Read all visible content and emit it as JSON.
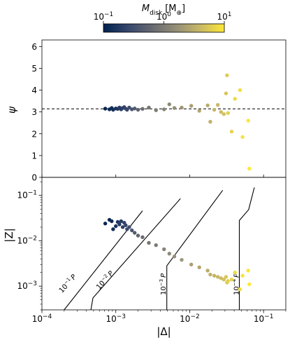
{
  "colorbar": {
    "label": "M_disk [M_⊕]",
    "label_main": "M",
    "label_sub": "disk",
    "label_unit": "[M",
    "label_unit_sub": "⊕",
    "label_close": "]",
    "range": [
      0.1,
      10
    ],
    "scale": "log",
    "ticks": [
      {
        "value": 0.1,
        "base": "10",
        "exp": "−1"
      },
      {
        "value": 1,
        "base": "10",
        "exp": "0"
      },
      {
        "value": 10,
        "base": "10",
        "exp": "1"
      }
    ],
    "colormap": "cividis",
    "colors": [
      "#00224e",
      "#35456c",
      "#666970",
      "#948e77",
      "#c8b866",
      "#fee838"
    ]
  },
  "chart_data": [
    {
      "type": "scatter",
      "panel": "top",
      "ylabel": "ψ",
      "ylim": [
        0,
        6.3
      ],
      "yticks": [
        {
          "value": 0,
          "label": "0"
        },
        {
          "value": 1,
          "label": "1"
        },
        {
          "value": 2,
          "label": "2"
        },
        {
          "value": 3,
          "label": "3"
        },
        {
          "value": 4,
          "label": "4"
        },
        {
          "value": 5,
          "label": "5"
        },
        {
          "value": 6,
          "label": "6"
        }
      ],
      "xscale": "log",
      "xlim": [
        0.0001,
        0.2
      ],
      "reference_line": {
        "y": 3.14159,
        "style": "dashed"
      },
      "points": [
        {
          "x": 0.00072,
          "y": 3.15,
          "m": 0.11
        },
        {
          "x": 0.00082,
          "y": 3.12,
          "m": 0.12
        },
        {
          "x": 0.00088,
          "y": 3.18,
          "m": 0.13
        },
        {
          "x": 0.00092,
          "y": 3.1,
          "m": 0.14
        },
        {
          "x": 0.001,
          "y": 3.16,
          "m": 0.15
        },
        {
          "x": 0.00106,
          "y": 3.14,
          "m": 0.17
        },
        {
          "x": 0.00112,
          "y": 3.2,
          "m": 0.19
        },
        {
          "x": 0.00118,
          "y": 3.12,
          "m": 0.2
        },
        {
          "x": 0.00124,
          "y": 3.18,
          "m": 0.22
        },
        {
          "x": 0.0013,
          "y": 3.22,
          "m": 0.24
        },
        {
          "x": 0.00136,
          "y": 3.15,
          "m": 0.26
        },
        {
          "x": 0.00142,
          "y": 3.1,
          "m": 0.28
        },
        {
          "x": 0.00152,
          "y": 3.2,
          "m": 0.32
        },
        {
          "x": 0.00165,
          "y": 3.12,
          "m": 0.38
        },
        {
          "x": 0.0018,
          "y": 3.16,
          "m": 0.45
        },
        {
          "x": 0.002,
          "y": 3.1,
          "m": 0.55
        },
        {
          "x": 0.0023,
          "y": 3.14,
          "m": 0.7
        },
        {
          "x": 0.0028,
          "y": 3.2,
          "m": 0.85
        },
        {
          "x": 0.0035,
          "y": 3.08,
          "m": 1.0
        },
        {
          "x": 0.0045,
          "y": 3.12,
          "m": 1.2
        },
        {
          "x": 0.0053,
          "y": 3.35,
          "m": 1.4
        },
        {
          "x": 0.0062,
          "y": 3.18,
          "m": 1.6
        },
        {
          "x": 0.0078,
          "y": 3.2,
          "m": 1.9
        },
        {
          "x": 0.0105,
          "y": 3.28,
          "m": 2.3
        },
        {
          "x": 0.0135,
          "y": 3.05,
          "m": 2.7
        },
        {
          "x": 0.0175,
          "y": 3.3,
          "m": 3.1
        },
        {
          "x": 0.019,
          "y": 2.55,
          "m": 3.4
        },
        {
          "x": 0.0215,
          "y": 3.1,
          "m": 3.7
        },
        {
          "x": 0.024,
          "y": 3.32,
          "m": 4.0
        },
        {
          "x": 0.0265,
          "y": 3.0,
          "m": 4.3
        },
        {
          "x": 0.029,
          "y": 2.9,
          "m": 4.7
        },
        {
          "x": 0.031,
          "y": 3.85,
          "m": 5.2
        },
        {
          "x": 0.032,
          "y": 4.68,
          "m": 5.8
        },
        {
          "x": 0.033,
          "y": 2.95,
          "m": 6.2
        },
        {
          "x": 0.037,
          "y": 2.1,
          "m": 6.8
        },
        {
          "x": 0.041,
          "y": 3.6,
          "m": 7.5
        },
        {
          "x": 0.048,
          "y": 4.0,
          "m": 8.3
        },
        {
          "x": 0.052,
          "y": 1.85,
          "m": 9.0
        },
        {
          "x": 0.062,
          "y": 2.6,
          "m": 9.5
        },
        {
          "x": 0.064,
          "y": 0.4,
          "m": 10.0
        }
      ]
    },
    {
      "type": "scatter",
      "panel": "bottom",
      "xlabel": "|Δ|",
      "ylabel": "|Z|",
      "xscale": "log",
      "yscale": "log",
      "xlim": [
        0.0001,
        0.2
      ],
      "ylim": [
        0.0003,
        0.25
      ],
      "xticks": [
        {
          "value": 0.0001,
          "base": "10",
          "exp": "−4"
        },
        {
          "value": 0.001,
          "base": "10",
          "exp": "−3"
        },
        {
          "value": 0.01,
          "base": "10",
          "exp": "−2"
        },
        {
          "value": 0.1,
          "base": "10",
          "exp": "−1"
        }
      ],
      "yticks": [
        {
          "value": 0.001,
          "base": "10",
          "exp": "−3"
        },
        {
          "value": 0.01,
          "base": "10",
          "exp": "−2"
        },
        {
          "value": 0.1,
          "base": "10",
          "exp": "−1"
        }
      ],
      "reference_lines": [
        {
          "label_base": "10",
          "label_exp": "−1",
          "label_p": "P",
          "points": [
            [
              0.0002,
              0.0003
            ],
            [
              0.0023,
              0.046
            ]
          ]
        },
        {
          "label_base": "10",
          "label_exp": "−2",
          "label_p": "P",
          "points": [
            [
              0.00046,
              0.0003
            ],
            [
              0.00049,
              0.00055
            ],
            [
              0.0075,
              0.085
            ]
          ]
        },
        {
          "label_base": "10",
          "label_exp": "−3",
          "label_p": "P",
          "points": [
            [
              0.0049,
              0.0003
            ],
            [
              0.0049,
              0.0028
            ],
            [
              0.028,
              0.13
            ]
          ]
        },
        {
          "label_base": "10",
          "label_exp": "−4",
          "label_p": "P",
          "points": [
            [
              0.047,
              0.0003
            ],
            [
              0.047,
              0.028
            ],
            [
              0.063,
              0.049
            ],
            [
              0.063,
              0.05
            ],
            [
              0.075,
              0.15
            ]
          ]
        }
      ],
      "line_labels_at": [
        {
          "x": 0.000235,
          "y": 0.00105
        },
        {
          "x": 0.00075,
          "y": 0.00125
        },
        {
          "x": 0.0047,
          "y": 0.0011
        },
        {
          "x": 0.046,
          "y": 0.0011
        }
      ],
      "points": [
        {
          "x": 0.00072,
          "y": 0.024,
          "m": 0.11
        },
        {
          "x": 0.00082,
          "y": 0.029,
          "m": 0.12
        },
        {
          "x": 0.00088,
          "y": 0.027,
          "m": 0.13
        },
        {
          "x": 0.00092,
          "y": 0.018,
          "m": 0.14
        },
        {
          "x": 0.001,
          "y": 0.021,
          "m": 0.15
        },
        {
          "x": 0.00106,
          "y": 0.026,
          "m": 0.17
        },
        {
          "x": 0.00112,
          "y": 0.023,
          "m": 0.19
        },
        {
          "x": 0.00118,
          "y": 0.027,
          "m": 0.2
        },
        {
          "x": 0.00124,
          "y": 0.02,
          "m": 0.22
        },
        {
          "x": 0.0013,
          "y": 0.025,
          "m": 0.24
        },
        {
          "x": 0.00136,
          "y": 0.022,
          "m": 0.26
        },
        {
          "x": 0.00142,
          "y": 0.018,
          "m": 0.28
        },
        {
          "x": 0.00152,
          "y": 0.02,
          "m": 0.32
        },
        {
          "x": 0.00165,
          "y": 0.017,
          "m": 0.38
        },
        {
          "x": 0.0018,
          "y": 0.015,
          "m": 0.45
        },
        {
          "x": 0.002,
          "y": 0.013,
          "m": 0.55
        },
        {
          "x": 0.0023,
          "y": 0.012,
          "m": 0.7
        },
        {
          "x": 0.0028,
          "y": 0.009,
          "m": 0.85
        },
        {
          "x": 0.0035,
          "y": 0.008,
          "m": 1.0
        },
        {
          "x": 0.0045,
          "y": 0.0065,
          "m": 1.2
        },
        {
          "x": 0.0053,
          "y": 0.0052,
          "m": 1.4
        },
        {
          "x": 0.0062,
          "y": 0.0045,
          "m": 1.6
        },
        {
          "x": 0.0078,
          "y": 0.0038,
          "m": 1.9
        },
        {
          "x": 0.0105,
          "y": 0.003,
          "m": 2.3
        },
        {
          "x": 0.0135,
          "y": 0.0026,
          "m": 2.7
        },
        {
          "x": 0.0175,
          "y": 0.0022,
          "m": 3.1
        },
        {
          "x": 0.019,
          "y": 0.0018,
          "m": 3.4
        },
        {
          "x": 0.0215,
          "y": 0.0017,
          "m": 3.7
        },
        {
          "x": 0.024,
          "y": 0.0016,
          "m": 4.0
        },
        {
          "x": 0.0265,
          "y": 0.0015,
          "m": 4.3
        },
        {
          "x": 0.029,
          "y": 0.0014,
          "m": 4.7
        },
        {
          "x": 0.031,
          "y": 0.0016,
          "m": 5.2
        },
        {
          "x": 0.032,
          "y": 0.0012,
          "m": 5.8
        },
        {
          "x": 0.033,
          "y": 0.0013,
          "m": 6.2
        },
        {
          "x": 0.037,
          "y": 0.0014,
          "m": 6.8
        },
        {
          "x": 0.041,
          "y": 0.002,
          "m": 7.5
        },
        {
          "x": 0.048,
          "y": 0.00085,
          "m": 8.3
        },
        {
          "x": 0.052,
          "y": 0.0017,
          "m": 9.0
        },
        {
          "x": 0.062,
          "y": 0.0022,
          "m": 9.5
        },
        {
          "x": 0.064,
          "y": 0.0011,
          "m": 10.0
        }
      ]
    }
  ]
}
